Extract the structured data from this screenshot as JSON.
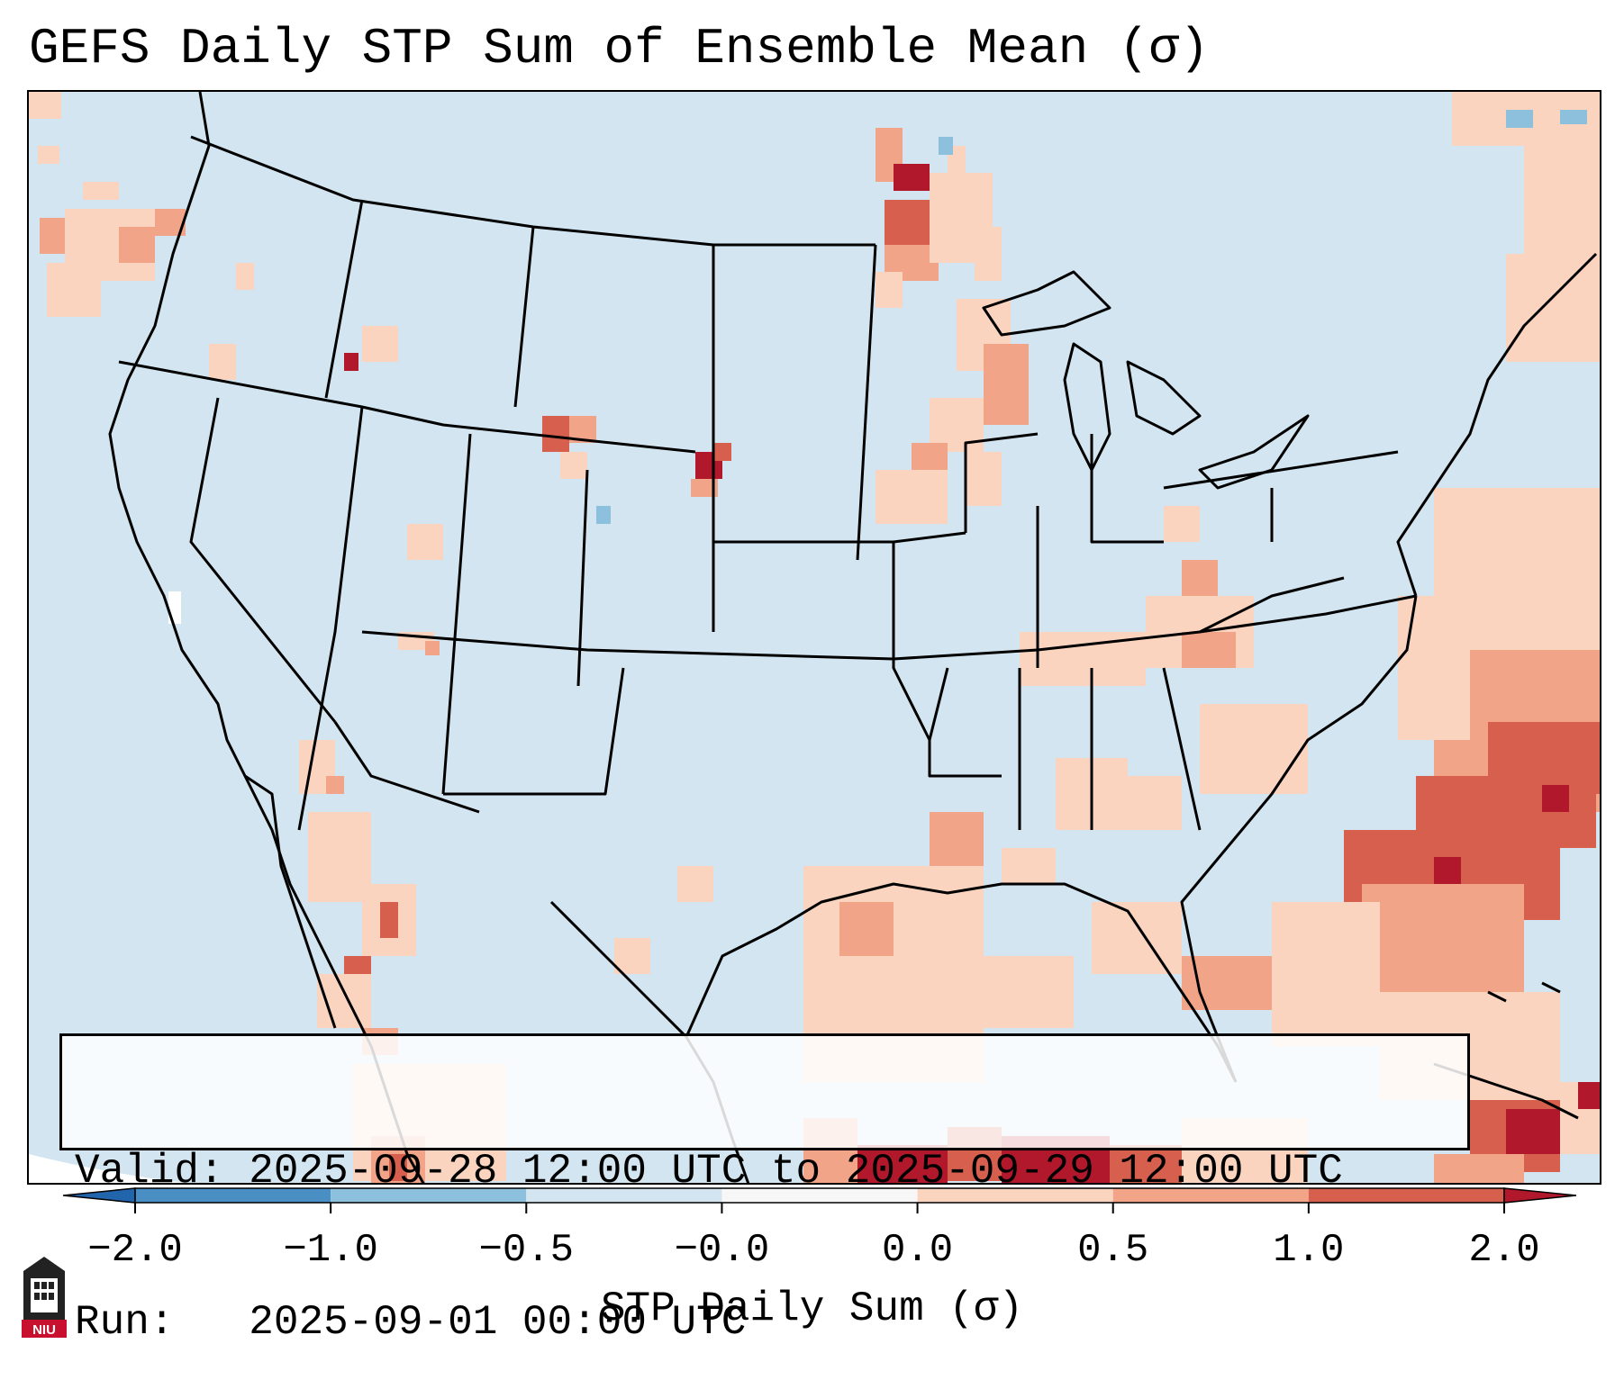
{
  "title": "GEFS Daily STP Sum of Ensemble Mean (σ)",
  "info": {
    "valid_label": "Valid:",
    "valid_value": "2025-09-28 12:00 UTC to 2025-09-29 12:00 UTC",
    "run_label": "Run:",
    "run_value": "2025-09-01 00:00 UTC"
  },
  "colorbar": {
    "label": "STP Daily Sum (σ)",
    "ticks": [
      "−2.0",
      "−1.0",
      "−0.5",
      "−0.0",
      "0.0",
      "0.5",
      "1.0",
      "2.0"
    ],
    "bins": [
      {
        "from": -2.0,
        "to": -1.0,
        "color": "#4a8fc4"
      },
      {
        "from": -1.0,
        "to": -0.5,
        "color": "#8dc0dd"
      },
      {
        "from": -0.5,
        "to": -0.0,
        "color": "#d2e5f0"
      },
      {
        "from": -0.0,
        "to": 0.0,
        "color": "#f7f7f7"
      },
      {
        "from": 0.0,
        "to": 0.5,
        "color": "#fbd4c0"
      },
      {
        "from": 0.5,
        "to": 1.0,
        "color": "#f1a488"
      },
      {
        "from": 1.0,
        "to": 2.0,
        "color": "#d6604d"
      }
    ],
    "extend_low_color": "#2166ac",
    "extend_high_color": "#b2182b"
  },
  "legend_colors": {
    "background": "#d2e5f0",
    "light": "#fbd4c0",
    "medium": "#f1a488",
    "strong": "#d6604d",
    "extreme": "#b2182b",
    "negative": "#8dc0dd"
  },
  "logo": {
    "text": "NIU",
    "icon": "niu-logo-icon"
  }
}
